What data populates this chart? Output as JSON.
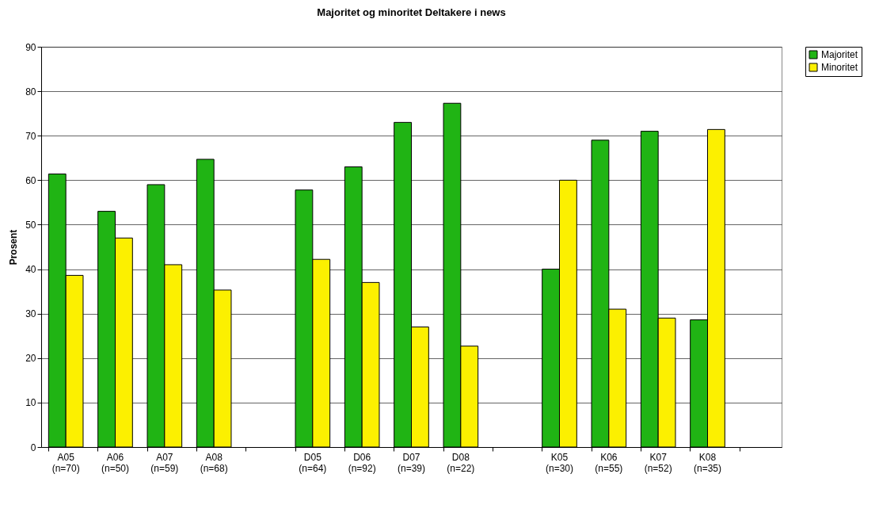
{
  "chart_data": {
    "type": "bar",
    "title": "Majoritet og minoritet Deltakere i news",
    "ylabel": "Prosent",
    "categories": [
      "A05 (n=70)",
      "A06 (n=50)",
      "A07 (n=59)",
      "A08 (n=68)",
      null,
      "D05 (n=64)",
      "D06 (n=92)",
      "D07 (n=39)",
      "D08 (n=22)",
      null,
      "K05 (n=30)",
      "K06 (n=55)",
      "K07 (n=52)",
      "K08 (n=35)",
      null
    ],
    "series": [
      {
        "name": "Majoritet",
        "color": "#20b414",
        "values": [
          61.4,
          53,
          59,
          64.7,
          null,
          57.8,
          63,
          73,
          77.3,
          null,
          40,
          69,
          71,
          28.6,
          null
        ]
      },
      {
        "name": "Minoritet",
        "color": "#fcf000",
        "values": [
          38.6,
          47,
          41,
          35.3,
          null,
          42.2,
          37,
          27,
          22.7,
          null,
          60,
          31,
          29,
          71.4,
          null
        ]
      }
    ],
    "ylim": [
      0,
      90
    ],
    "yticks": [
      0,
      10,
      20,
      30,
      40,
      50,
      60,
      70,
      80,
      90
    ],
    "grid": "y",
    "legend": "right"
  }
}
